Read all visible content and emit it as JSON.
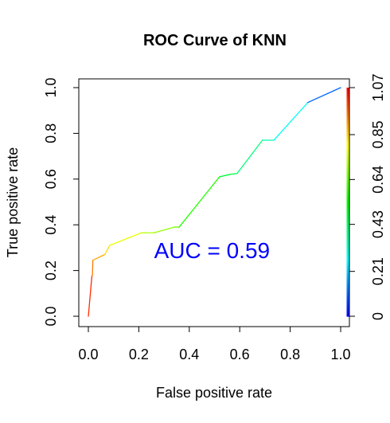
{
  "chart_data": {
    "type": "line",
    "title": "ROC Curve of KNN",
    "xlabel": "False positive rate",
    "ylabel": "True positive rate",
    "xlim": [
      0,
      1
    ],
    "ylim": [
      0,
      1
    ],
    "grid": false,
    "legend": "none",
    "x_ticks": [
      "0.0",
      "0.2",
      "0.4",
      "0.6",
      "0.8",
      "1.0"
    ],
    "y_ticks": [
      "0.0",
      "0.2",
      "0.4",
      "0.6",
      "0.8",
      "1.0"
    ],
    "annotation": {
      "text": "AUC = 0.59",
      "color": "#0000ff",
      "x": 0.49,
      "y": 0.29
    },
    "series": [
      {
        "x": [
          0.0,
          0.014,
          0.016,
          0.018,
          0.065,
          0.085,
          0.21,
          0.26,
          0.34,
          0.36,
          0.52,
          0.56,
          0.59,
          0.69,
          0.735,
          0.87,
          1.0
        ],
        "y": [
          0.0,
          0.175,
          0.18,
          0.245,
          0.27,
          0.31,
          0.365,
          0.365,
          0.39,
          0.39,
          0.61,
          0.62,
          0.625,
          0.77,
          0.77,
          0.935,
          1.0
        ],
        "cutoff": [
          1.07,
          0.98,
          0.96,
          0.93,
          0.86,
          0.82,
          0.74,
          0.71,
          0.67,
          0.64,
          0.5,
          0.47,
          0.45,
          0.37,
          0.34,
          0.22,
          0.0
        ]
      }
    ],
    "colorbar": {
      "ticks": [
        "0",
        "0.21",
        "0.43",
        "0.64",
        "0.85",
        "1.07"
      ],
      "min": 0,
      "max": 1.07
    }
  }
}
